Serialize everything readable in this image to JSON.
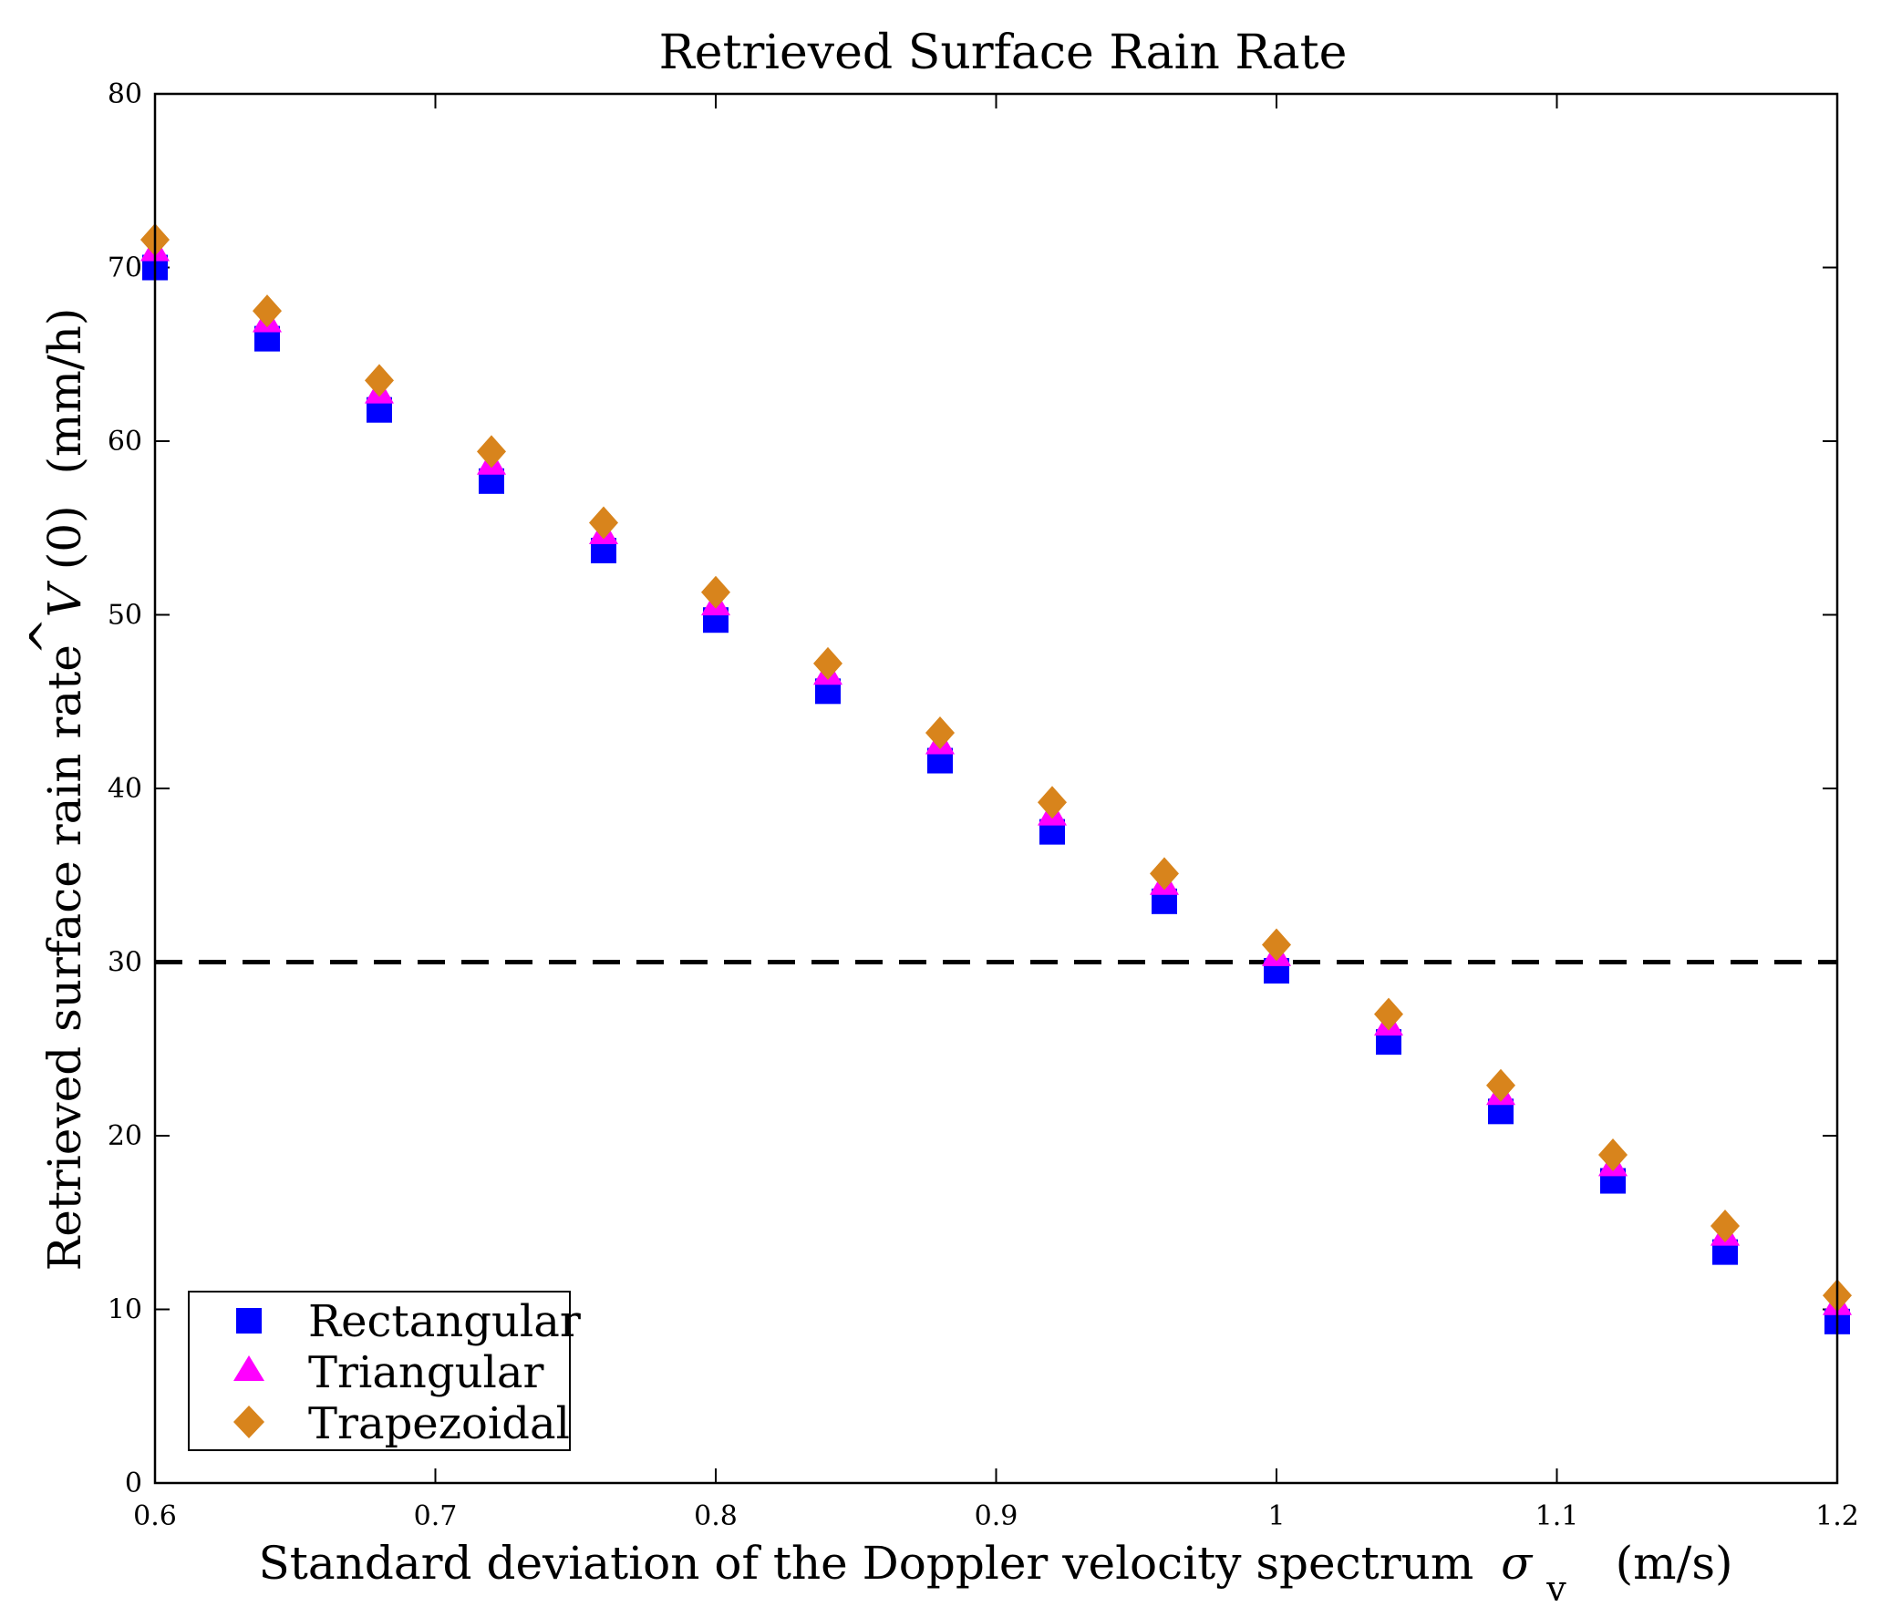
{
  "chart_data": {
    "type": "scatter",
    "title": "Retrieved Surface Rain Rate",
    "xlabel": {
      "main": "Standard deviation of the Doppler velocity spectrum",
      "symbol": "σ",
      "subscript": "v",
      "unit": "(m/s)"
    },
    "ylabel": {
      "main": "Retrieved surface rain rate",
      "symbol": "V",
      "hat": "^",
      "arg": "(0)",
      "unit": "(mm/h)"
    },
    "xlim": [
      0.6,
      1.2
    ],
    "ylim": [
      0,
      80
    ],
    "xticks": [
      0.6,
      0.7,
      0.8,
      0.9,
      1.0,
      1.1,
      1.2
    ],
    "xtick_labels": [
      "0.6",
      "0.7",
      "0.8",
      "0.9",
      "1",
      "1.1",
      "1.2"
    ],
    "yticks": [
      0,
      10,
      20,
      30,
      40,
      50,
      60,
      70,
      80
    ],
    "ytick_labels": [
      "0",
      "10",
      "20",
      "30",
      "40",
      "50",
      "60",
      "70",
      "80"
    ],
    "grid": false,
    "legend_position": "bottom-left",
    "x": [
      0.6,
      0.64,
      0.68,
      0.72,
      0.76,
      0.8,
      0.84,
      0.88,
      0.92,
      0.96,
      1.0,
      1.04,
      1.08,
      1.12,
      1.16,
      1.2
    ],
    "series": [
      {
        "name": "Rectangular",
        "marker": "square",
        "color": "#0000ff",
        "values": [
          70.0,
          65.9,
          61.8,
          57.7,
          53.7,
          49.7,
          45.6,
          41.6,
          37.5,
          33.5,
          29.5,
          25.4,
          21.4,
          17.4,
          13.3,
          9.3
        ]
      },
      {
        "name": "Triangular",
        "marker": "triangle",
        "color": "#ff00ff",
        "values": [
          71.0,
          66.9,
          62.8,
          58.7,
          54.7,
          50.6,
          46.6,
          42.6,
          38.5,
          34.5,
          30.4,
          26.4,
          22.4,
          18.3,
          14.3,
          10.3
        ]
      },
      {
        "name": "Trapezoidal",
        "marker": "diamond",
        "color": "#d8841c",
        "values": [
          71.6,
          67.5,
          63.5,
          59.4,
          55.3,
          51.3,
          47.2,
          43.2,
          39.2,
          35.1,
          31.0,
          27.0,
          22.9,
          18.9,
          14.8,
          10.8
        ]
      }
    ],
    "reference_line": {
      "y": 30,
      "style": "dashed",
      "color": "#000000"
    }
  }
}
